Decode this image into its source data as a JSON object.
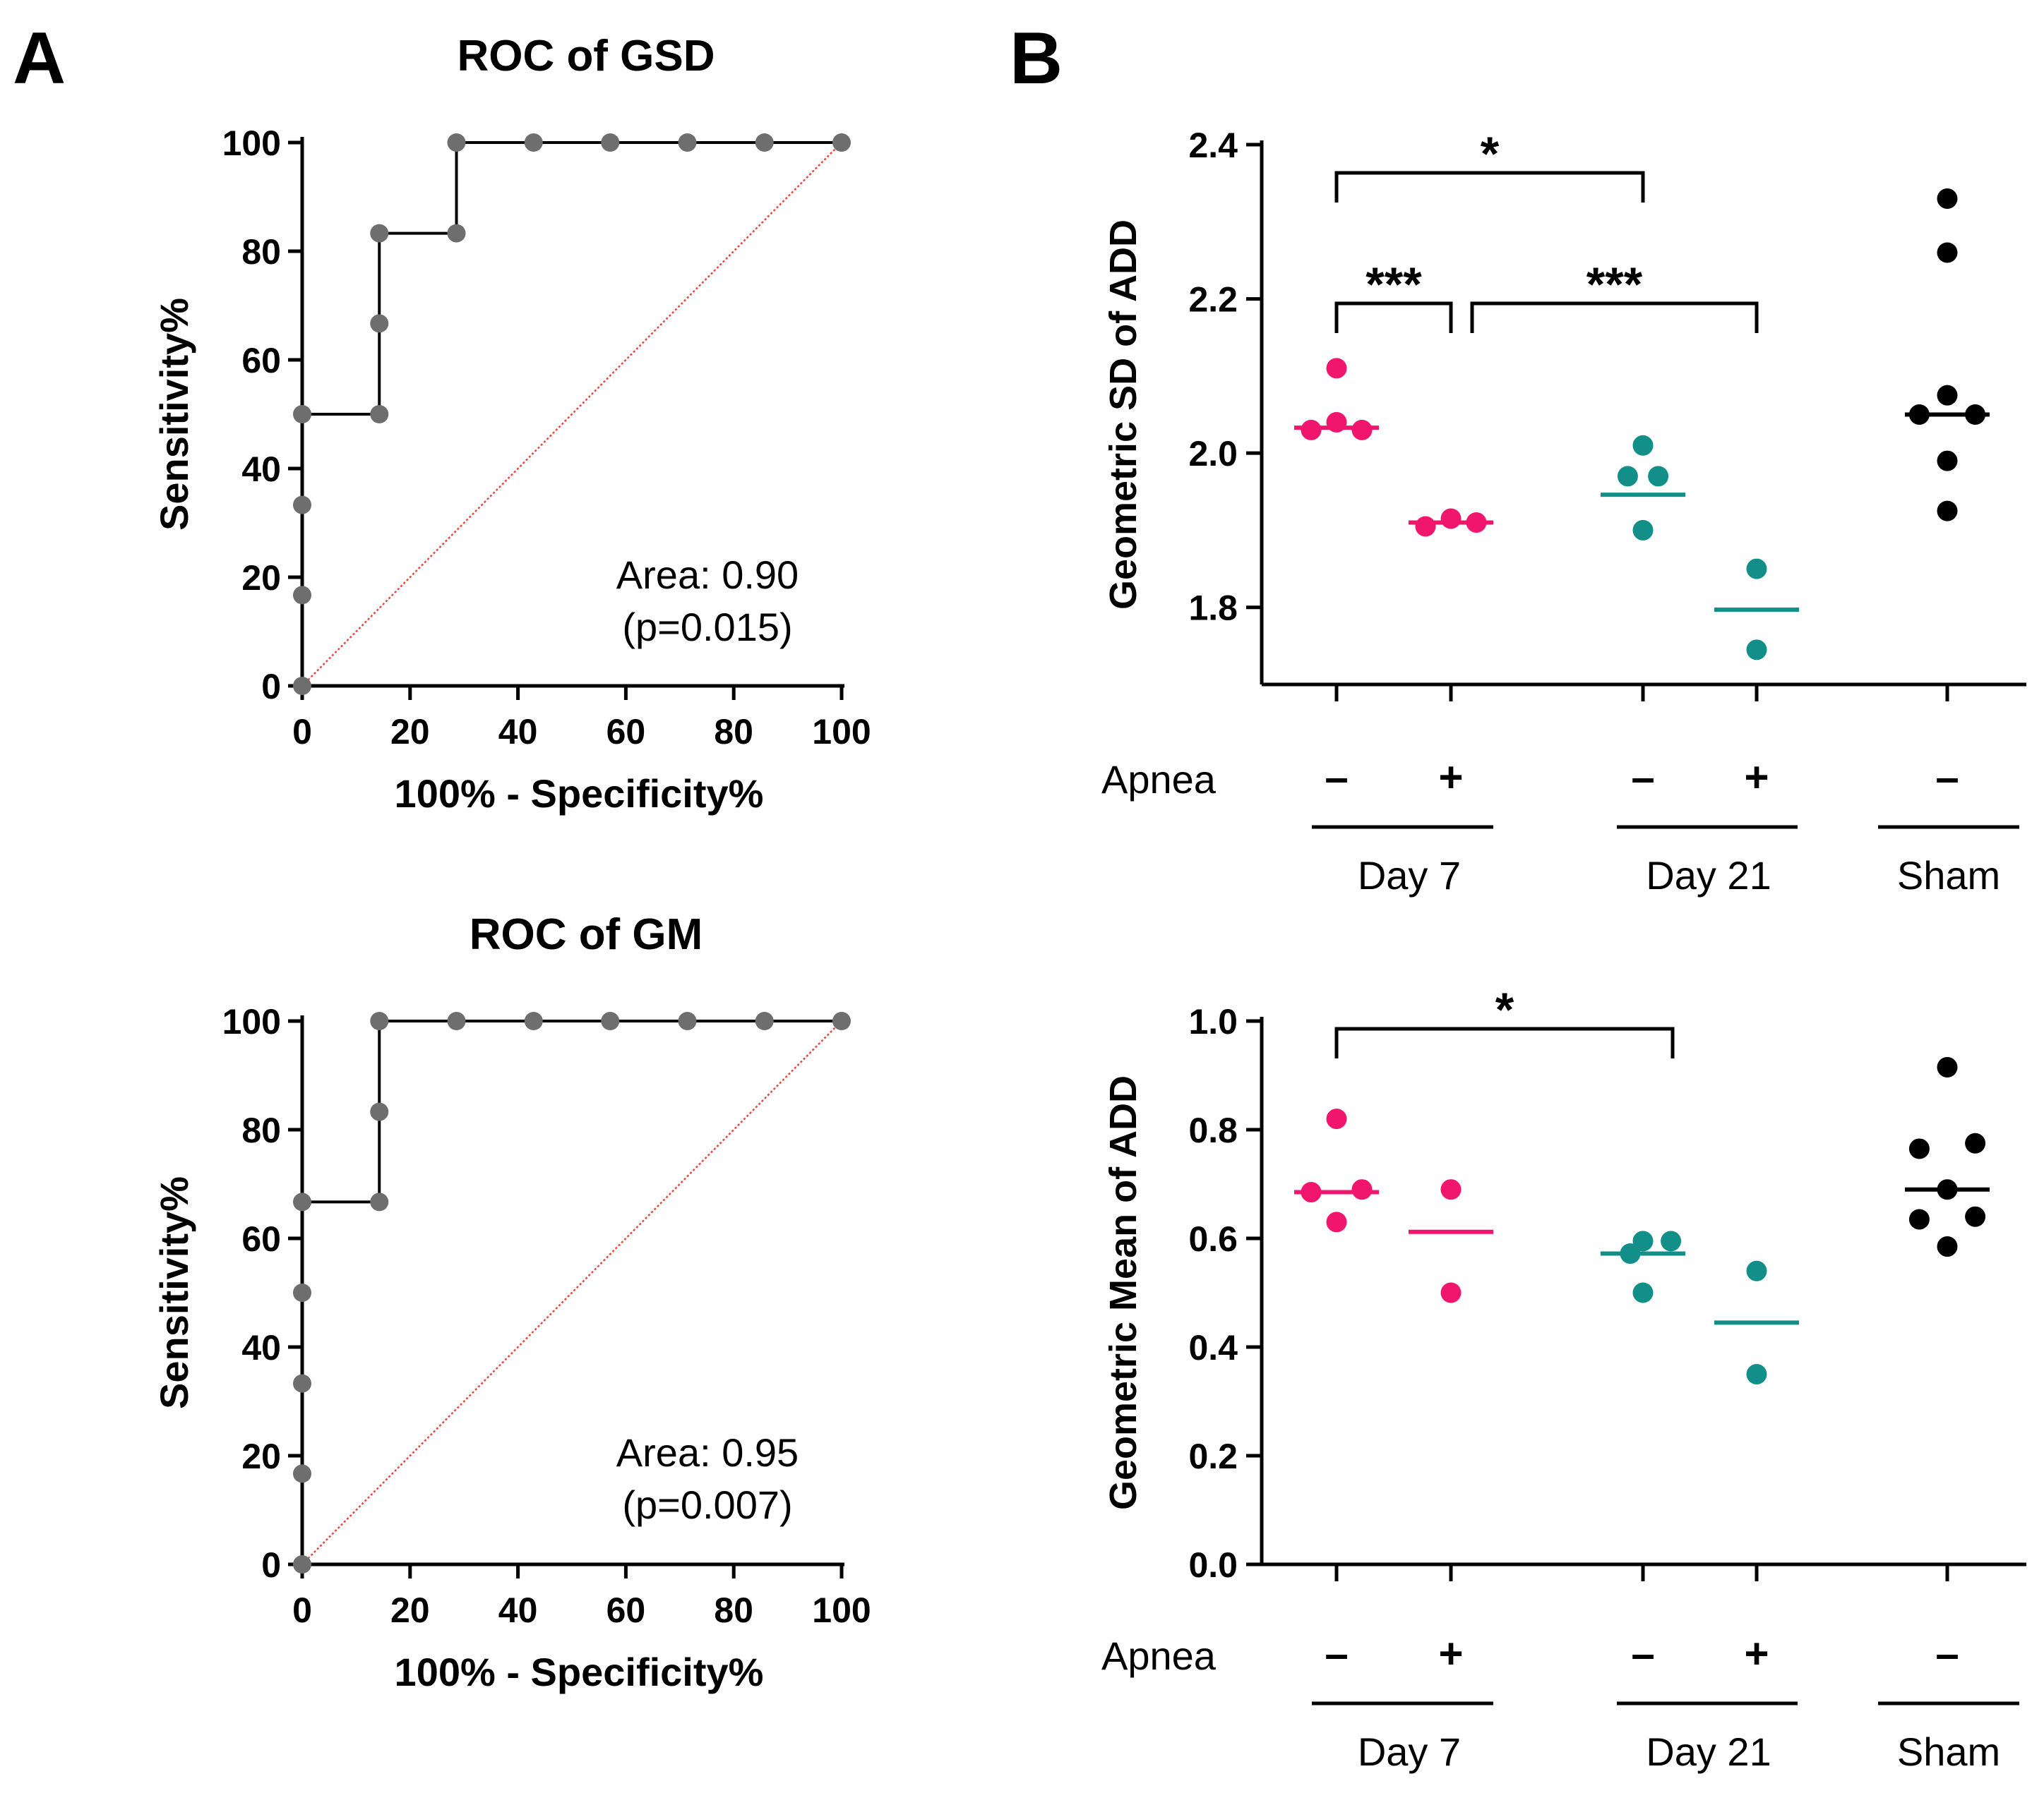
{
  "panel_labels": {
    "a": "A",
    "b": "B"
  },
  "colors": {
    "roc_points": "#6e6e6e",
    "roc_line": "#000000",
    "diagonal": "#e8463c",
    "day7": "#f0166e",
    "day21": "#138f8a",
    "sham": "#000000"
  },
  "chart_data": [
    {
      "id": "roc_gsd",
      "type": "line",
      "title": "ROC of GSD",
      "xlabel": "100% - Specificity%",
      "ylabel": "Sensitivity%",
      "xlim": [
        0,
        100
      ],
      "ylim": [
        0,
        100
      ],
      "xticks": [
        "0",
        "20",
        "40",
        "60",
        "80",
        "100"
      ],
      "yticks": [
        "0",
        "20",
        "40",
        "60",
        "80",
        "100"
      ],
      "x": [
        0,
        0,
        0,
        0,
        14.3,
        14.3,
        14.3,
        28.6,
        28.6,
        42.9,
        57.1,
        71.4,
        85.7,
        100
      ],
      "y": [
        0,
        16.7,
        33.3,
        50,
        50,
        66.7,
        83.3,
        83.3,
        100,
        100,
        100,
        100,
        100,
        100
      ],
      "reference_line": [
        [
          0,
          0
        ],
        [
          100,
          100
        ]
      ],
      "annotation": [
        "Area: 0.90",
        "(p=0.015)"
      ]
    },
    {
      "id": "roc_gm",
      "type": "line",
      "title": "ROC of GM",
      "xlabel": "100% - Specificity%",
      "ylabel": "Sensitivity%",
      "xlim": [
        0,
        100
      ],
      "ylim": [
        0,
        100
      ],
      "xticks": [
        "0",
        "20",
        "40",
        "60",
        "80",
        "100"
      ],
      "yticks": [
        "0",
        "20",
        "40",
        "60",
        "80",
        "100"
      ],
      "x": [
        0,
        0,
        0,
        0,
        0,
        14.3,
        14.3,
        14.3,
        28.6,
        42.9,
        57.1,
        71.4,
        85.7,
        100
      ],
      "y": [
        0,
        16.7,
        33.3,
        50,
        66.7,
        66.7,
        83.3,
        100,
        100,
        100,
        100,
        100,
        100,
        100
      ],
      "reference_line": [
        [
          0,
          0
        ],
        [
          100,
          100
        ]
      ],
      "annotation": [
        "Area: 0.95",
        "(p=0.007)"
      ]
    },
    {
      "id": "gsd_add",
      "type": "scatter",
      "ylabel": "Geometric SD of ADD",
      "ylim": [
        1.7,
        2.4
      ],
      "yticks": [
        "1.8",
        "2.0",
        "2.2",
        "2.4"
      ],
      "row_label": "Apnea",
      "groups": [
        {
          "apnea": "–",
          "series": "Day 7",
          "color_key": "day7",
          "points": [
            [
              -0.2,
              2.03
            ],
            [
              0,
              2.04
            ],
            [
              0.2,
              2.03
            ],
            [
              0,
              2.11
            ]
          ],
          "median": 2.033
        },
        {
          "apnea": "+",
          "series": "Day 7",
          "color_key": "day7",
          "points": [
            [
              -0.2,
              1.905
            ],
            [
              0,
              1.915
            ],
            [
              0.2,
              1.91
            ]
          ],
          "median": 1.91
        },
        {
          "apnea": "–",
          "series": "Day 21",
          "color_key": "day21",
          "points": [
            [
              0,
              2.01
            ],
            [
              -0.12,
              1.97
            ],
            [
              0.12,
              1.97
            ],
            [
              0,
              1.9
            ]
          ],
          "median": 1.946
        },
        {
          "apnea": "+",
          "series": "Day 21",
          "color_key": "day21",
          "points": [
            [
              0,
              1.85
            ],
            [
              0,
              1.745
            ]
          ],
          "median": 1.797
        },
        {
          "apnea": "–",
          "series": "Sham",
          "color_key": "sham",
          "points": [
            [
              0,
              2.33
            ],
            [
              0,
              2.26
            ],
            [
              0,
              2.075
            ],
            [
              -0.22,
              2.05
            ],
            [
              0.22,
              2.05
            ],
            [
              0,
              1.99
            ],
            [
              0,
              1.925
            ]
          ],
          "median": 2.05
        }
      ],
      "group_labels": [
        "Day 7",
        "Day 21",
        "Sham"
      ],
      "significance": [
        {
          "from": 0,
          "to": 2,
          "label": "*"
        },
        {
          "from": 0,
          "to": 1,
          "label": "***"
        },
        {
          "from": 1,
          "to": 3,
          "label": "***"
        }
      ]
    },
    {
      "id": "gm_add",
      "type": "scatter",
      "ylabel": "Geometric Mean of ADD",
      "ylim": [
        0.0,
        1.0
      ],
      "yticks": [
        "0.0",
        "0.2",
        "0.4",
        "0.6",
        "0.8",
        "1.0"
      ],
      "row_label": "Apnea",
      "groups": [
        {
          "apnea": "–",
          "series": "Day 7",
          "color_key": "day7",
          "points": [
            [
              0,
              0.82
            ],
            [
              -0.2,
              0.685
            ],
            [
              0.2,
              0.69
            ],
            [
              0,
              0.63
            ]
          ],
          "median": 0.685
        },
        {
          "apnea": "+",
          "series": "Day 7",
          "color_key": "day7",
          "points": [
            [
              0,
              0.69
            ],
            [
              0,
              0.5
            ]
          ],
          "median": 0.612
        },
        {
          "apnea": "–",
          "series": "Day 21",
          "color_key": "day21",
          "points": [
            [
              0,
              0.595
            ],
            [
              0.22,
              0.595
            ],
            [
              -0.1,
              0.572
            ],
            [
              0,
              0.5
            ]
          ],
          "median": 0.572
        },
        {
          "apnea": "+",
          "series": "Day 21",
          "color_key": "day21",
          "points": [
            [
              0,
              0.54
            ],
            [
              0,
              0.35
            ]
          ],
          "median": 0.445
        },
        {
          "apnea": "–",
          "series": "Sham",
          "color_key": "sham",
          "points": [
            [
              0,
              0.915
            ],
            [
              -0.22,
              0.765
            ],
            [
              0.22,
              0.775
            ],
            [
              0,
              0.69
            ],
            [
              -0.22,
              0.635
            ],
            [
              0.22,
              0.64
            ],
            [
              0,
              0.585
            ]
          ],
          "median": 0.69
        }
      ],
      "group_labels": [
        "Day 7",
        "Day 21",
        "Sham"
      ],
      "significance": [
        {
          "from": 0,
          "to": 2,
          "label": "*"
        }
      ]
    }
  ]
}
